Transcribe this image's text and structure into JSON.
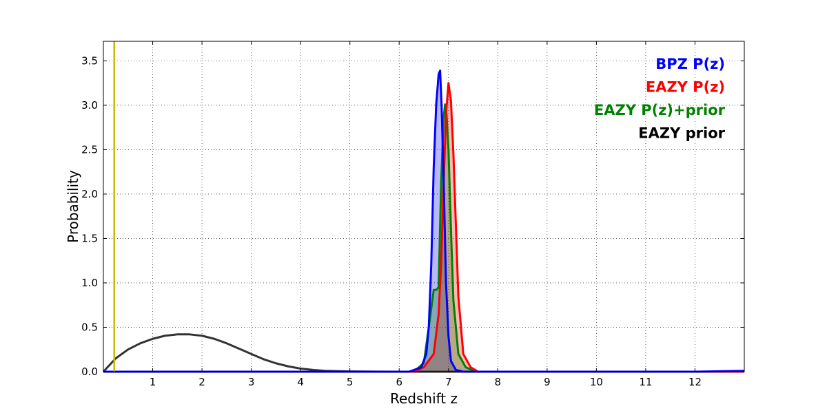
{
  "chart_data": {
    "type": "line",
    "xlabel": "Redshift z",
    "ylabel": "Probability",
    "xlim": [
      0,
      13
    ],
    "ylim": [
      0,
      3.72
    ],
    "x_ticks": [
      1,
      2,
      3,
      4,
      5,
      6,
      7,
      8,
      9,
      10,
      11,
      12
    ],
    "y_ticks": [
      0.0,
      0.5,
      1.0,
      1.5,
      2.0,
      2.5,
      3.0,
      3.5
    ],
    "grid": true,
    "legend_position": "top-right",
    "vertical_line": {
      "x": 0.22,
      "color": "#bfbf00"
    },
    "series": [
      {
        "name": "BPZ P(z)",
        "color": "#0000ff",
        "fill": "#0000ff",
        "x": [
          0,
          6.2,
          6.45,
          6.55,
          6.6,
          6.65,
          6.7,
          6.75,
          6.8,
          6.83,
          6.86,
          6.9,
          6.95,
          7.0,
          7.05,
          7.15,
          7.3,
          12.0,
          13.0
        ],
        "y": [
          0,
          0,
          0.05,
          0.2,
          0.5,
          1.2,
          2.3,
          3.0,
          3.35,
          3.39,
          3.0,
          2.2,
          1.0,
          0.4,
          0.12,
          0.02,
          0,
          0,
          0.01
        ]
      },
      {
        "name": "EAZY P(z)",
        "color": "#ff0000",
        "fill": "#ff0000",
        "x": [
          0,
          6.3,
          6.5,
          6.7,
          6.8,
          6.85,
          6.9,
          6.95,
          7.0,
          7.05,
          7.1,
          7.15,
          7.2,
          7.3,
          7.45,
          7.6,
          13.0
        ],
        "y": [
          0,
          0,
          0.05,
          0.2,
          0.65,
          1.2,
          2.1,
          2.9,
          3.25,
          3.05,
          2.45,
          1.65,
          0.85,
          0.2,
          0.05,
          0,
          0
        ]
      },
      {
        "name": "EAZY P(z)+prior",
        "color": "#008000",
        "fill": "#008000",
        "x": [
          0,
          6.3,
          6.5,
          6.6,
          6.7,
          6.75,
          6.8,
          6.85,
          6.9,
          6.93,
          6.96,
          7.0,
          7.05,
          7.1,
          7.2,
          7.35,
          7.55,
          13.0
        ],
        "y": [
          0,
          0,
          0.1,
          0.5,
          0.92,
          0.92,
          0.95,
          2.1,
          2.85,
          3.01,
          2.9,
          2.5,
          1.6,
          0.8,
          0.2,
          0.05,
          0,
          0
        ]
      },
      {
        "name": "EAZY prior",
        "color": "#333333",
        "x": [
          0,
          0.25,
          0.5,
          0.75,
          1.0,
          1.25,
          1.5,
          1.75,
          2.0,
          2.25,
          2.5,
          2.75,
          3.0,
          3.25,
          3.5,
          3.75,
          4.0,
          4.25,
          4.5,
          5.0,
          5.5,
          6.0,
          6.5,
          7.0,
          13.0
        ],
        "y": [
          0.0,
          0.15,
          0.25,
          0.32,
          0.37,
          0.405,
          0.42,
          0.42,
          0.405,
          0.37,
          0.32,
          0.26,
          0.2,
          0.14,
          0.095,
          0.06,
          0.035,
          0.02,
          0.01,
          0.003,
          0.001,
          0,
          0,
          0,
          0
        ]
      }
    ]
  }
}
